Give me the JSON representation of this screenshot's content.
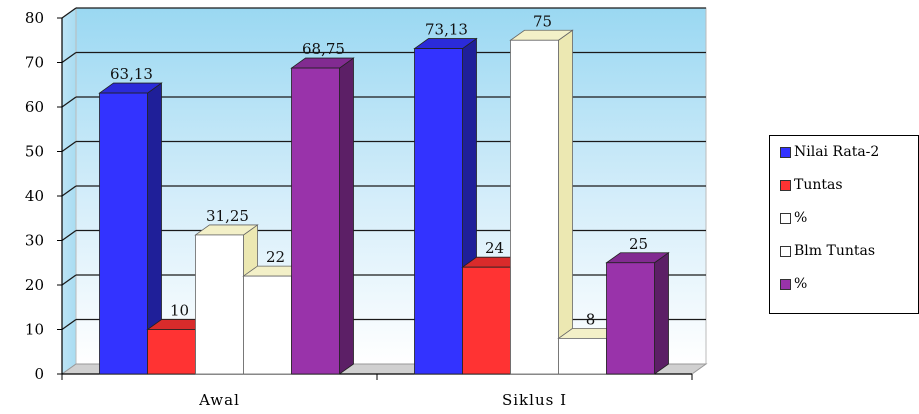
{
  "chart_data": {
    "type": "bar",
    "categories": [
      "Awal",
      "Siklus I"
    ],
    "series": [
      {
        "name": "Nilai Rata-2",
        "values": [
          63.13,
          73.13
        ],
        "labels": [
          "63,13",
          "73,13"
        ],
        "color": "#3333ff"
      },
      {
        "name": "Tuntas",
        "values": [
          10,
          24
        ],
        "labels": [
          "10",
          "24"
        ],
        "color": "#ff3333"
      },
      {
        "name": "%",
        "values": [
          31.25,
          75
        ],
        "labels": [
          "31,25",
          "75"
        ],
        "color": "#ffffff"
      },
      {
        "name": "Blm Tuntas",
        "values": [
          22,
          8
        ],
        "labels": [
          "22",
          "8"
        ],
        "color": "#ffffff"
      },
      {
        "name": "%",
        "values": [
          68.75,
          25
        ],
        "labels": [
          "68,75",
          "25"
        ],
        "color": "#9933aa"
      }
    ],
    "yticks": [
      "0",
      "10",
      "20",
      "30",
      "40",
      "50",
      "60",
      "70",
      "80"
    ],
    "ylim": [
      0,
      80
    ],
    "grid": true,
    "legend_position": "right",
    "three_d": true
  }
}
